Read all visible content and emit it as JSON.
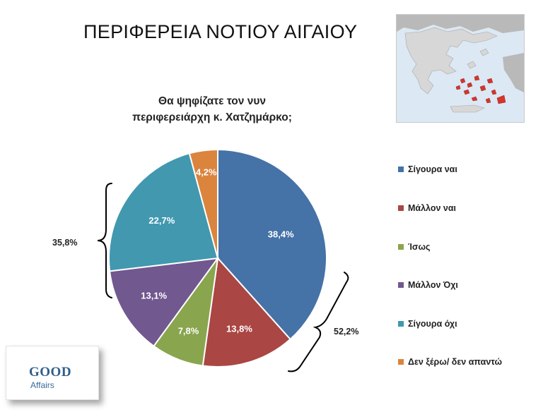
{
  "page_title": "ΠΕΡΙΦΕΡΕΙΑ ΝΟΤΙΟΥ ΑΙΓΑΙΟΥ",
  "logo": {
    "top": "GOOD",
    "bottom": "Affairs"
  },
  "chart_data": {
    "type": "pie",
    "title_lines": [
      "Θα ψηφίζατε τον νυν",
      "περιφερειάρχη κ. Χατζημάρκο;"
    ],
    "categories": [
      "Σίγουρα ναι",
      "Μάλλον ναι",
      "Ίσως",
      "Μάλλον Όχι",
      "Σίγουρα όχι",
      "Δεν ξέρω/ δεν απαντώ"
    ],
    "values": [
      38.4,
      13.8,
      7.8,
      13.1,
      22.7,
      4.2
    ],
    "labels": [
      "38,4%",
      "13,8%",
      "7,8%",
      "13,1%",
      "22,7%",
      "4,2%"
    ],
    "colors": [
      "#4572a7",
      "#aa4643",
      "#89a54e",
      "#71588f",
      "#4198af",
      "#db843d"
    ],
    "legend_position": "right",
    "groups": [
      {
        "label": "52,2%",
        "members": [
          0,
          1
        ]
      },
      {
        "label": "35,8%",
        "members": [
          3,
          4
        ]
      }
    ]
  },
  "map": {
    "sea_color": "#dce8f3",
    "land_color": "#d7d7d7",
    "region_color": "#d9332b",
    "neighbor_color": "#b9b9b9"
  }
}
